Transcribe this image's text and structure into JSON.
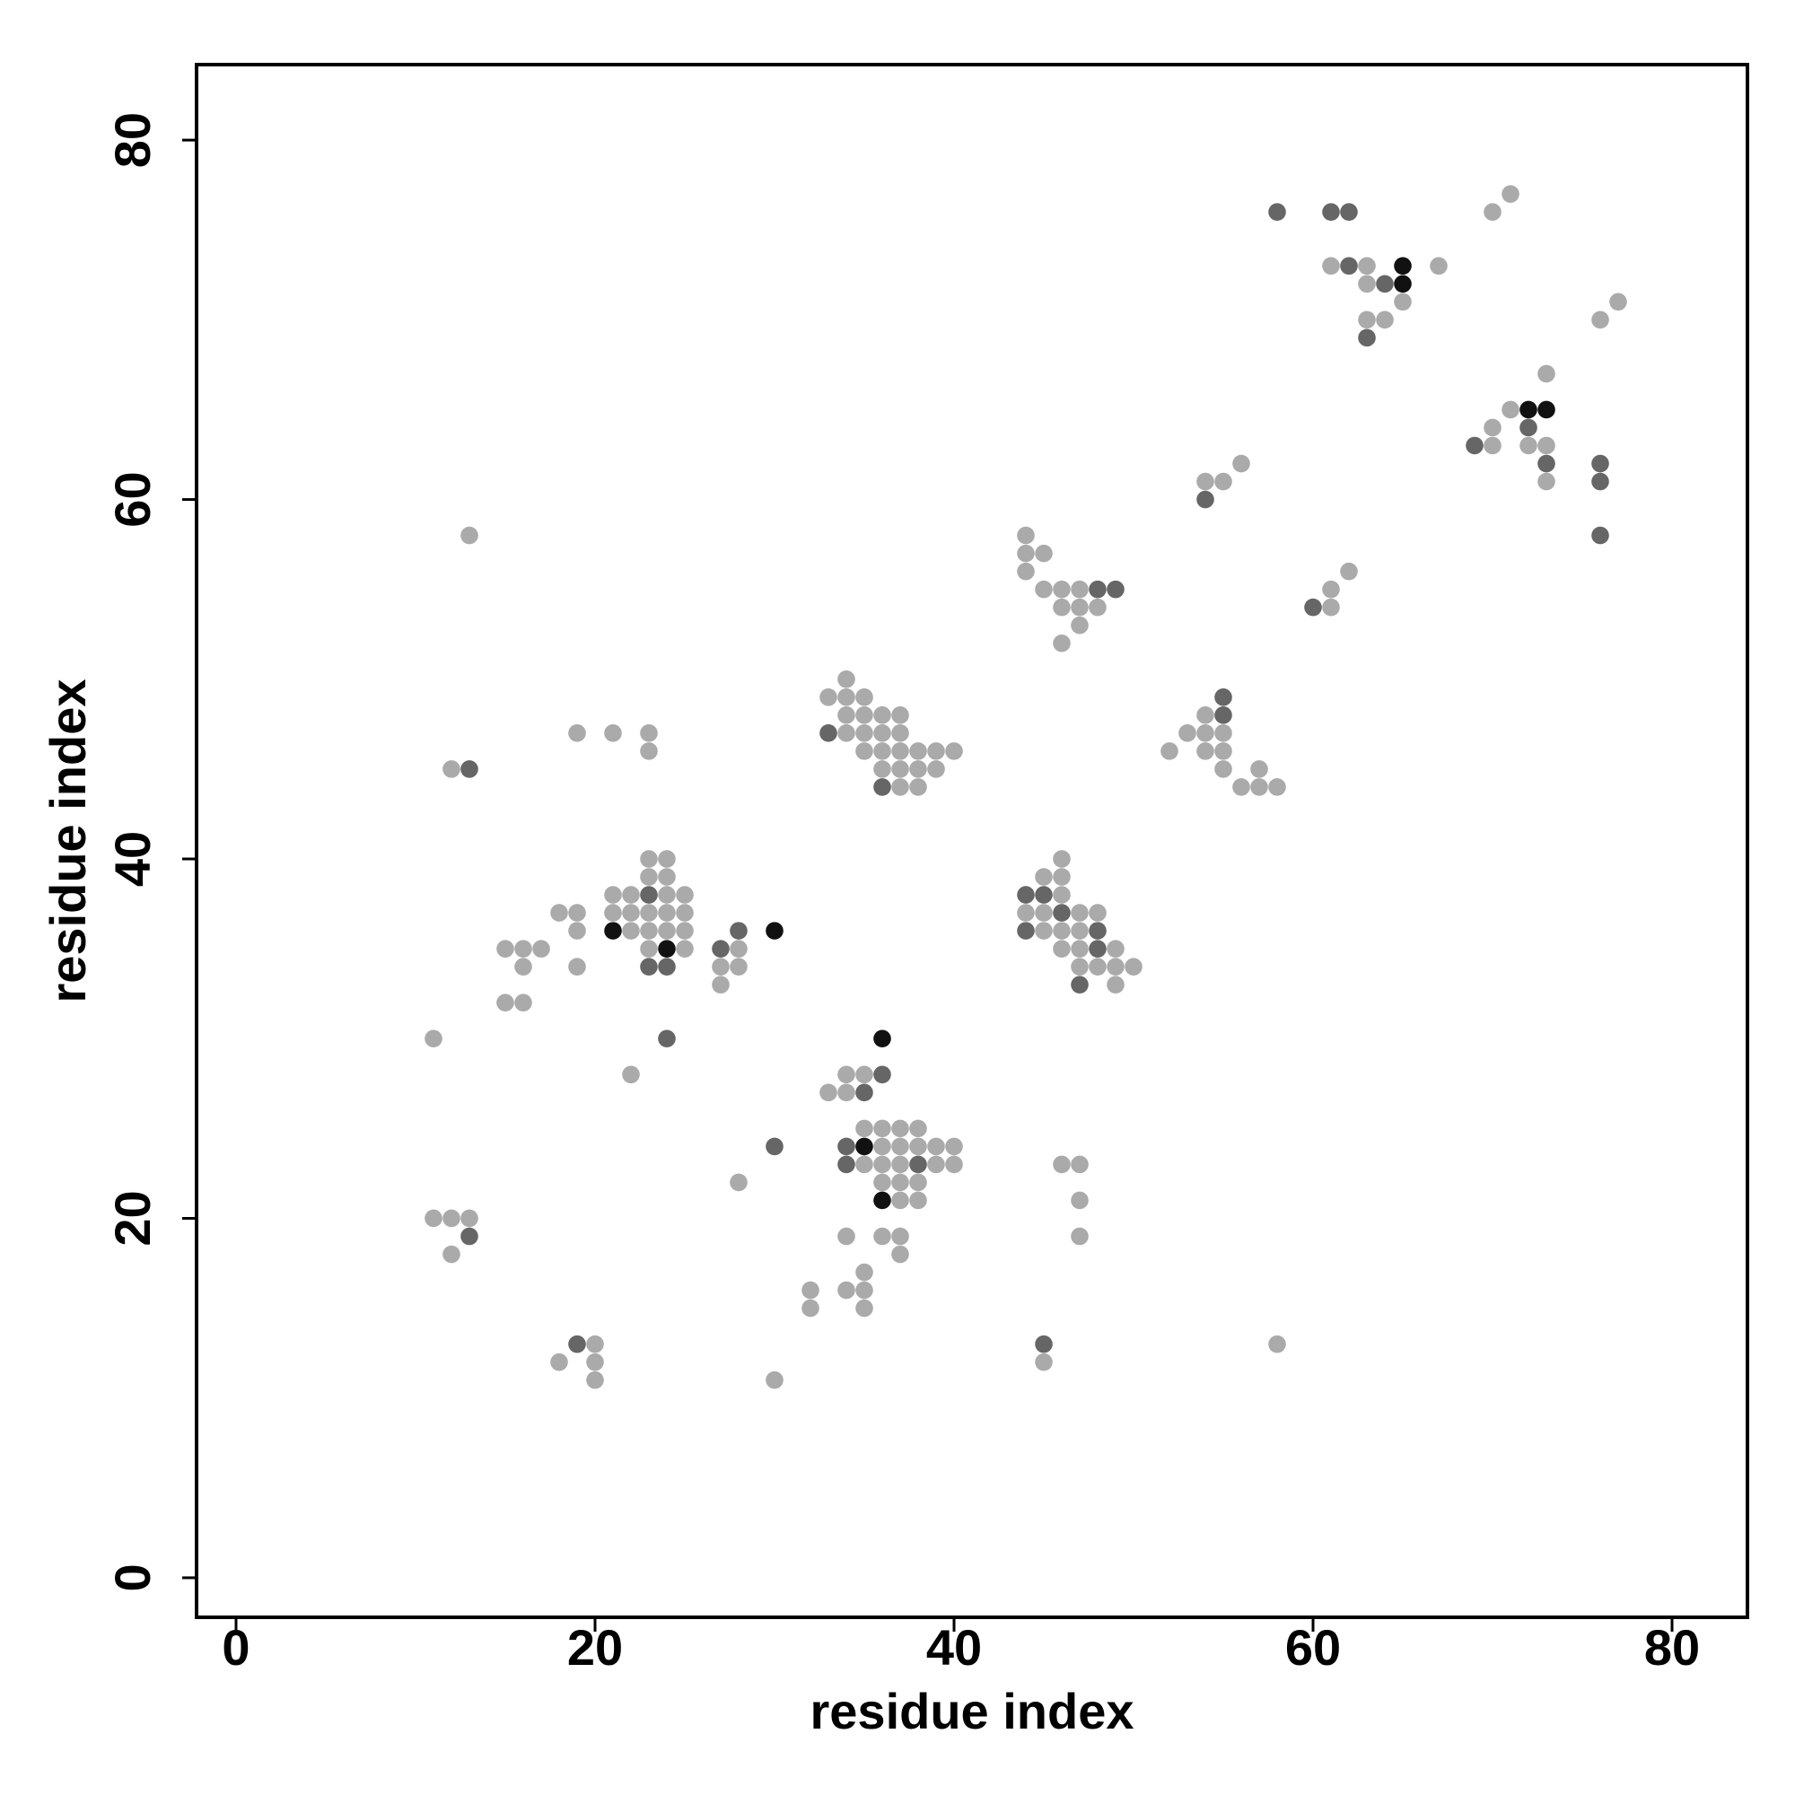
{
  "chart_data": {
    "type": "scatter",
    "xlabel": "residue index",
    "ylabel": "residue index",
    "xlim": [
      -2.2,
      84.2
    ],
    "ylim": [
      -2.2,
      84.2
    ],
    "xticks": [
      0,
      20,
      40,
      60,
      80
    ],
    "yticks": [
      0,
      20,
      40,
      60,
      80
    ],
    "x": [
      71,
      58,
      61,
      62,
      70,
      61,
      62,
      63,
      65,
      67,
      63,
      64,
      65,
      65,
      77,
      63,
      64,
      76,
      63,
      73,
      71,
      72,
      73,
      70,
      72,
      69,
      70,
      72,
      73,
      56,
      73,
      76,
      54,
      55,
      73,
      76,
      54,
      13,
      44,
      76,
      44,
      45,
      44,
      62,
      45,
      46,
      47,
      48,
      49,
      61,
      46,
      47,
      48,
      60,
      61,
      47,
      46,
      34,
      33,
      34,
      35,
      55,
      34,
      35,
      36,
      37,
      54,
      55,
      19,
      21,
      23,
      33,
      34,
      35,
      36,
      37,
      53,
      54,
      55,
      23,
      35,
      36,
      37,
      38,
      39,
      40,
      52,
      54,
      55,
      12,
      13,
      36,
      37,
      38,
      39,
      55,
      57,
      36,
      37,
      38,
      56,
      57,
      58,
      23,
      24,
      46,
      23,
      24,
      45,
      46,
      21,
      22,
      23,
      24,
      25,
      44,
      45,
      46,
      18,
      19,
      21,
      22,
      23,
      24,
      25,
      44,
      45,
      46,
      47,
      48,
      19,
      21,
      22,
      23,
      24,
      25,
      28,
      30,
      44,
      45,
      46,
      47,
      48,
      15,
      16,
      17,
      23,
      24,
      25,
      27,
      28,
      46,
      47,
      48,
      49,
      16,
      19,
      23,
      24,
      27,
      28,
      47,
      48,
      49,
      50,
      27,
      47,
      49,
      15,
      16,
      11,
      24,
      36,
      22,
      34,
      35,
      36,
      33,
      34,
      35,
      35,
      36,
      37,
      38,
      30,
      34,
      35,
      36,
      37,
      38,
      39,
      40,
      34,
      35,
      36,
      37,
      38,
      39,
      40,
      46,
      47,
      28,
      36,
      37,
      38,
      36,
      37,
      38,
      47,
      11,
      12,
      13,
      13,
      34,
      36,
      37,
      47,
      12,
      37,
      35,
      32,
      34,
      35,
      32,
      35,
      19,
      20,
      45,
      58,
      18,
      20,
      45,
      20,
      30
    ],
    "y": [
      77,
      76,
      76,
      76,
      76,
      73,
      73,
      73,
      73,
      73,
      72,
      72,
      72,
      71,
      71,
      70,
      70,
      70,
      69,
      67,
      65,
      65,
      65,
      64,
      64,
      63,
      63,
      63,
      63,
      62,
      62,
      62,
      61,
      61,
      61,
      61,
      60,
      58,
      58,
      58,
      57,
      57,
      56,
      56,
      55,
      55,
      55,
      55,
      55,
      55,
      54,
      54,
      54,
      54,
      54,
      53,
      52,
      50,
      49,
      49,
      49,
      49,
      48,
      48,
      48,
      48,
      48,
      48,
      47,
      47,
      47,
      47,
      47,
      47,
      47,
      47,
      47,
      47,
      47,
      46,
      46,
      46,
      46,
      46,
      46,
      46,
      46,
      46,
      46,
      45,
      45,
      45,
      45,
      45,
      45,
      45,
      45,
      44,
      44,
      44,
      44,
      44,
      44,
      40,
      40,
      40,
      39,
      39,
      39,
      39,
      38,
      38,
      38,
      38,
      38,
      38,
      38,
      38,
      37,
      37,
      37,
      37,
      37,
      37,
      37,
      37,
      37,
      37,
      37,
      37,
      36,
      36,
      36,
      36,
      36,
      36,
      36,
      36,
      36,
      36,
      36,
      36,
      36,
      35,
      35,
      35,
      35,
      35,
      35,
      35,
      35,
      35,
      35,
      35,
      35,
      34,
      34,
      34,
      34,
      34,
      34,
      34,
      34,
      34,
      34,
      33,
      33,
      33,
      32,
      32,
      30,
      30,
      30,
      28,
      28,
      28,
      28,
      27,
      27,
      27,
      25,
      25,
      25,
      25,
      24,
      24,
      24,
      24,
      24,
      24,
      24,
      24,
      23,
      23,
      23,
      23,
      23,
      23,
      23,
      23,
      23,
      22,
      22,
      22,
      22,
      21,
      21,
      21,
      21,
      20,
      20,
      20,
      19,
      19,
      19,
      19,
      19,
      18,
      18,
      17,
      16,
      16,
      16,
      15,
      15,
      13,
      13,
      13,
      13,
      12,
      12,
      12,
      11,
      11
    ],
    "colors": [
      "#aaaaaa",
      "#666666",
      "#666666",
      "#666666",
      "#aaaaaa",
      "#aaaaaa",
      "#666666",
      "#aaaaaa",
      "#111111",
      "#aaaaaa",
      "#aaaaaa",
      "#666666",
      "#111111",
      "#aaaaaa",
      "#aaaaaa",
      "#aaaaaa",
      "#aaaaaa",
      "#aaaaaa",
      "#666666",
      "#aaaaaa",
      "#aaaaaa",
      "#111111",
      "#111111",
      "#aaaaaa",
      "#666666",
      "#666666",
      "#aaaaaa",
      "#aaaaaa",
      "#aaaaaa",
      "#aaaaaa",
      "#666666",
      "#666666",
      "#aaaaaa",
      "#aaaaaa",
      "#aaaaaa",
      "#666666",
      "#666666",
      "#aaaaaa",
      "#aaaaaa",
      "#666666",
      "#aaaaaa",
      "#aaaaaa",
      "#aaaaaa",
      "#aaaaaa",
      "#aaaaaa",
      "#aaaaaa",
      "#aaaaaa",
      "#666666",
      "#666666",
      "#aaaaaa",
      "#aaaaaa",
      "#aaaaaa",
      "#aaaaaa",
      "#666666",
      "#aaaaaa",
      "#aaaaaa",
      "#aaaaaa",
      "#aaaaaa",
      "#aaaaaa",
      "#aaaaaa",
      "#aaaaaa",
      "#666666",
      "#aaaaaa",
      "#aaaaaa",
      "#aaaaaa",
      "#aaaaaa",
      "#aaaaaa",
      "#666666",
      "#aaaaaa",
      "#aaaaaa",
      "#aaaaaa",
      "#666666",
      "#aaaaaa",
      "#aaaaaa",
      "#aaaaaa",
      "#aaaaaa",
      "#aaaaaa",
      "#aaaaaa",
      "#aaaaaa",
      "#aaaaaa",
      "#aaaaaa",
      "#aaaaaa",
      "#aaaaaa",
      "#aaaaaa",
      "#aaaaaa",
      "#aaaaaa",
      "#aaaaaa",
      "#aaaaaa",
      "#aaaaaa",
      "#aaaaaa",
      "#666666",
      "#aaaaaa",
      "#aaaaaa",
      "#aaaaaa",
      "#aaaaaa",
      "#aaaaaa",
      "#aaaaaa",
      "#666666",
      "#aaaaaa",
      "#aaaaaa",
      "#aaaaaa",
      "#aaaaaa",
      "#aaaaaa",
      "#aaaaaa",
      "#aaaaaa",
      "#aaaaaa",
      "#aaaaaa",
      "#aaaaaa",
      "#aaaaaa",
      "#aaaaaa",
      "#aaaaaa",
      "#aaaaaa",
      "#666666",
      "#aaaaaa",
      "#aaaaaa",
      "#666666",
      "#666666",
      "#aaaaaa",
      "#aaaaaa",
      "#aaaaaa",
      "#aaaaaa",
      "#aaaaaa",
      "#aaaaaa",
      "#aaaaaa",
      "#aaaaaa",
      "#aaaaaa",
      "#aaaaaa",
      "#666666",
      "#aaaaaa",
      "#aaaaaa",
      "#aaaaaa",
      "#111111",
      "#aaaaaa",
      "#aaaaaa",
      "#aaaaaa",
      "#aaaaaa",
      "#666666",
      "#111111",
      "#666666",
      "#aaaaaa",
      "#aaaaaa",
      "#aaaaaa",
      "#666666",
      "#aaaaaa",
      "#aaaaaa",
      "#aaaaaa",
      "#aaaaaa",
      "#111111",
      "#aaaaaa",
      "#666666",
      "#aaaaaa",
      "#aaaaaa",
      "#aaaaaa",
      "#666666",
      "#aaaaaa",
      "#aaaaaa",
      "#aaaaaa",
      "#666666",
      "#666666",
      "#aaaaaa",
      "#aaaaaa",
      "#aaaaaa",
      "#aaaaaa",
      "#aaaaaa",
      "#aaaaaa",
      "#aaaaaa",
      "#666666",
      "#aaaaaa",
      "#aaaaaa",
      "#aaaaaa",
      "#aaaaaa",
      "#666666",
      "#111111",
      "#aaaaaa",
      "#aaaaaa",
      "#aaaaaa",
      "#666666",
      "#aaaaaa",
      "#aaaaaa",
      "#666666",
      "#aaaaaa",
      "#aaaaaa",
      "#aaaaaa",
      "#aaaaaa",
      "#666666",
      "#666666",
      "#111111",
      "#aaaaaa",
      "#aaaaaa",
      "#aaaaaa",
      "#aaaaaa",
      "#aaaaaa",
      "#666666",
      "#aaaaaa",
      "#aaaaaa",
      "#aaaaaa",
      "#666666",
      "#aaaaaa",
      "#aaaaaa",
      "#aaaaaa",
      "#aaaaaa",
      "#aaaaaa",
      "#aaaaaa",
      "#aaaaaa",
      "#aaaaaa",
      "#111111",
      "#aaaaaa",
      "#aaaaaa",
      "#aaaaaa",
      "#aaaaaa",
      "#aaaaaa",
      "#aaaaaa",
      "#666666",
      "#aaaaaa",
      "#aaaaaa",
      "#aaaaaa",
      "#aaaaaa",
      "#aaaaaa",
      "#aaaaaa",
      "#aaaaaa",
      "#aaaaaa",
      "#aaaaaa",
      "#aaaaaa",
      "#aaaaaa",
      "#aaaaaa",
      "#666666",
      "#aaaaaa",
      "#666666",
      "#aaaaaa",
      "#aaaaaa",
      "#aaaaaa",
      "#aaaaaa",
      "#aaaaaa",
      "#aaaaaa"
    ]
  }
}
